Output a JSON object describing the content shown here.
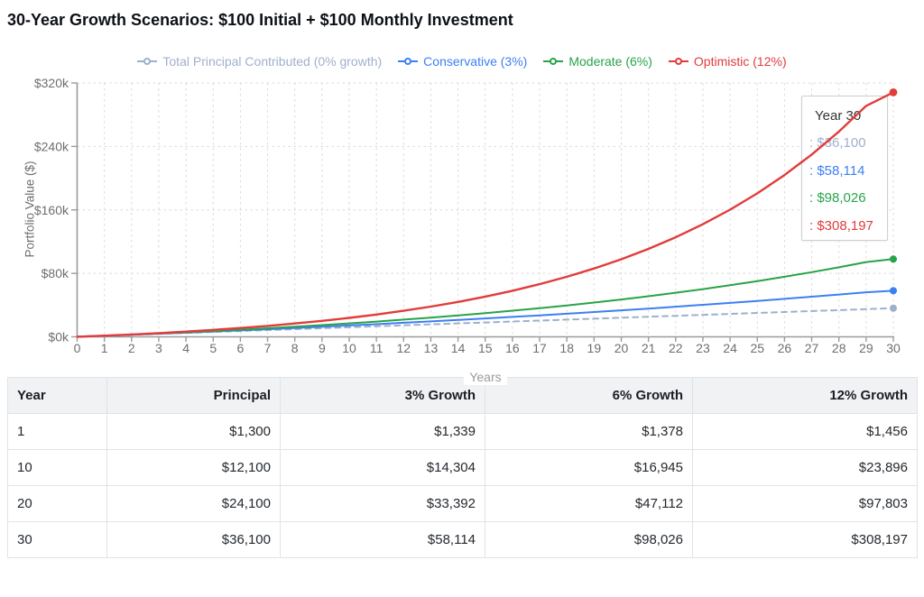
{
  "page": {
    "title": "30-Year Growth Scenarios: $100 Initial + $100 Monthly Investment"
  },
  "chart_data": {
    "type": "line",
    "title": "30-Year Growth Scenarios: $100 Initial + $100 Monthly Investment",
    "xlabel": "Years",
    "ylabel": "Portfolio Value ($)",
    "xlim": [
      0,
      30
    ],
    "ylim": [
      0,
      320000
    ],
    "grid": "dashed-both-directions",
    "legend_position": "top-center",
    "x": [
      0,
      1,
      2,
      3,
      4,
      5,
      6,
      7,
      8,
      9,
      10,
      11,
      12,
      13,
      14,
      15,
      16,
      17,
      18,
      19,
      20,
      21,
      22,
      23,
      24,
      25,
      26,
      27,
      28,
      29,
      30
    ],
    "y_ticks": [
      {
        "value": 0,
        "label": "$0k"
      },
      {
        "value": 80000,
        "label": "$80k"
      },
      {
        "value": 160000,
        "label": "$160k"
      },
      {
        "value": 240000,
        "label": "$240k"
      },
      {
        "value": 320000,
        "label": "$320k"
      }
    ],
    "series": [
      {
        "name": "Total Principal Contributed (0% growth)",
        "color": "#9fb0cd",
        "style": "dashed",
        "values": [
          100,
          1300,
          2500,
          3700,
          4900,
          6100,
          7300,
          8500,
          9700,
          10900,
          12100,
          13300,
          14500,
          15700,
          16900,
          18100,
          19300,
          20500,
          21700,
          22900,
          24100,
          25300,
          26500,
          27700,
          28900,
          30100,
          31300,
          32500,
          33700,
          34900,
          36100
        ]
      },
      {
        "name": "Conservative (3%)",
        "color": "#3d7ff3",
        "style": "solid",
        "values": [
          100,
          1339,
          2615,
          3930,
          5284,
          6678,
          8114,
          9594,
          11118,
          12687,
          14304,
          15969,
          17684,
          19450,
          21270,
          23144,
          25074,
          27063,
          29110,
          31220,
          33392,
          35630,
          37935,
          40309,
          42754,
          45273,
          47867,
          50539,
          53291,
          56126,
          58114
        ]
      },
      {
        "name": "Moderate (6%)",
        "color": "#28a348",
        "style": "solid",
        "values": [
          100,
          1378,
          2733,
          4169,
          5691,
          7304,
          9014,
          10827,
          12749,
          14786,
          16945,
          19234,
          21660,
          24231,
          26957,
          29847,
          32910,
          36156,
          39597,
          43245,
          47112,
          51211,
          55555,
          60161,
          65042,
          70217,
          75702,
          81516,
          87679,
          94212,
          98026
        ]
      },
      {
        "name": "Optimistic (12%)",
        "color": "#e23b3b",
        "style": "solid",
        "values": [
          100,
          1456,
          2975,
          4676,
          6581,
          8714,
          11104,
          13781,
          16778,
          20136,
          23896,
          28108,
          32825,
          38107,
          44024,
          50651,
          58073,
          66386,
          75697,
          86124,
          97803,
          110883,
          125533,
          141941,
          160318,
          180901,
          203953,
          229771,
          258688,
          291074,
          308197
        ]
      }
    ],
    "tooltip": {
      "title": "Year 30",
      "rows": [
        {
          "text": ": $36,100",
          "color": "#9fb0cd"
        },
        {
          "text": ": $58,114",
          "color": "#3d7ff3"
        },
        {
          "text": ": $98,026",
          "color": "#28a348"
        },
        {
          "text": ": $308,197",
          "color": "#e23b3b"
        }
      ]
    }
  },
  "table": {
    "headers": [
      "Year",
      "Principal",
      "3% Growth",
      "6% Growth",
      "12% Growth"
    ],
    "rows": [
      [
        "1",
        "$1,300",
        "$1,339",
        "$1,378",
        "$1,456"
      ],
      [
        "10",
        "$12,100",
        "$14,304",
        "$16,945",
        "$23,896"
      ],
      [
        "20",
        "$24,100",
        "$33,392",
        "$47,112",
        "$97,803"
      ],
      [
        "30",
        "$36,100",
        "$58,114",
        "$98,026",
        "$308,197"
      ]
    ]
  },
  "colors": {
    "axis": "#9b9b9b",
    "grid": "#dadada",
    "tick_text": "#6e6e6e",
    "title_text": "#0d1117",
    "table_border": "#dfe3e9",
    "table_header_bg": "#f1f2f4"
  }
}
